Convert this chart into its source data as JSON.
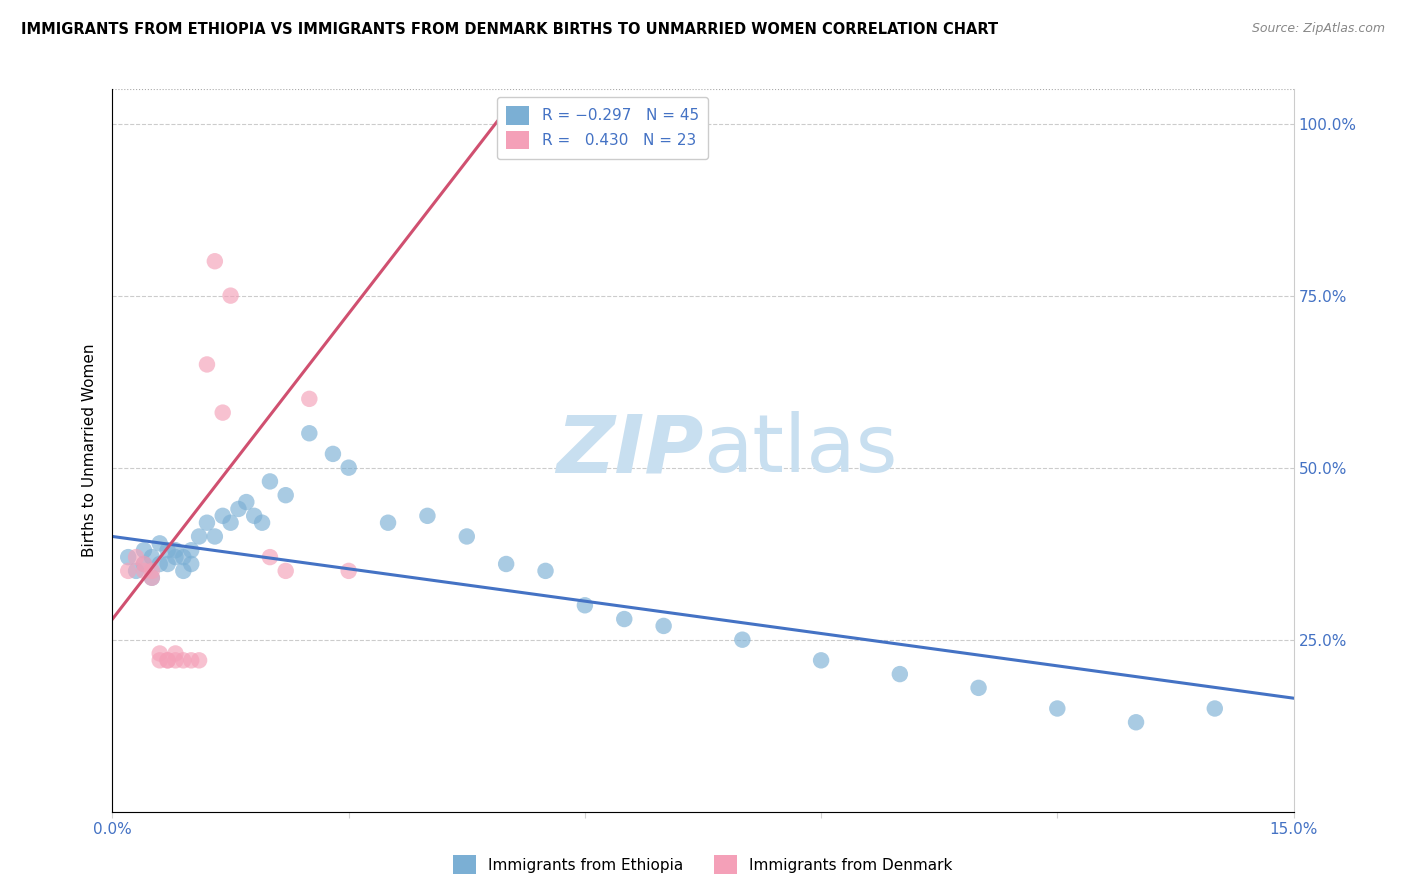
{
  "title": "IMMIGRANTS FROM ETHIOPIA VS IMMIGRANTS FROM DENMARK BIRTHS TO UNMARRIED WOMEN CORRELATION CHART",
  "source": "Source: ZipAtlas.com",
  "ylabel": "Births to Unmarried Women",
  "x_min": 0.0,
  "x_max": 0.15,
  "y_min": 0.0,
  "y_max": 1.05,
  "x_ticks": [
    0.0,
    0.03,
    0.06,
    0.09,
    0.12,
    0.15
  ],
  "x_tick_labels": [
    "0.0%",
    "",
    "",
    "",
    "",
    "15.0%"
  ],
  "y_ticks": [
    0.25,
    0.5,
    0.75,
    1.0
  ],
  "y_tick_labels": [
    "25.0%",
    "50.0%",
    "75.0%",
    "100.0%"
  ],
  "series1_color": "#7bafd4",
  "series2_color": "#f4a0b8",
  "trend1_color": "#4472c4",
  "trend2_color": "#d05070",
  "watermark_color": "#c8dff0",
  "ethiopia_x": [
    0.002,
    0.003,
    0.004,
    0.004,
    0.005,
    0.005,
    0.006,
    0.006,
    0.007,
    0.007,
    0.008,
    0.008,
    0.009,
    0.009,
    0.01,
    0.01,
    0.011,
    0.012,
    0.013,
    0.014,
    0.015,
    0.016,
    0.017,
    0.018,
    0.019,
    0.02,
    0.022,
    0.025,
    0.028,
    0.03,
    0.035,
    0.04,
    0.045,
    0.05,
    0.055,
    0.06,
    0.065,
    0.07,
    0.08,
    0.09,
    0.1,
    0.11,
    0.12,
    0.13,
    0.14
  ],
  "ethiopia_y": [
    0.37,
    0.35,
    0.36,
    0.38,
    0.34,
    0.37,
    0.36,
    0.39,
    0.38,
    0.36,
    0.38,
    0.37,
    0.35,
    0.37,
    0.36,
    0.38,
    0.4,
    0.42,
    0.4,
    0.43,
    0.42,
    0.44,
    0.45,
    0.43,
    0.42,
    0.48,
    0.46,
    0.55,
    0.52,
    0.5,
    0.42,
    0.43,
    0.4,
    0.36,
    0.35,
    0.3,
    0.28,
    0.27,
    0.25,
    0.22,
    0.2,
    0.18,
    0.15,
    0.13,
    0.15
  ],
  "denmark_x": [
    0.002,
    0.003,
    0.004,
    0.004,
    0.005,
    0.005,
    0.006,
    0.006,
    0.007,
    0.007,
    0.008,
    0.008,
    0.009,
    0.01,
    0.011,
    0.012,
    0.013,
    0.014,
    0.015,
    0.02,
    0.022,
    0.025,
    0.03
  ],
  "denmark_y": [
    0.35,
    0.37,
    0.36,
    0.35,
    0.35,
    0.34,
    0.22,
    0.23,
    0.22,
    0.22,
    0.22,
    0.23,
    0.22,
    0.22,
    0.22,
    0.65,
    0.8,
    0.58,
    0.75,
    0.37,
    0.35,
    0.6,
    0.35
  ],
  "eth_trend_x0": 0.0,
  "eth_trend_x1": 0.15,
  "eth_trend_y0": 0.4,
  "eth_trend_y1": 0.165,
  "den_trend_x0": 0.0,
  "den_trend_x1": 0.05,
  "den_trend_y0": 0.28,
  "den_trend_y1": 1.02
}
